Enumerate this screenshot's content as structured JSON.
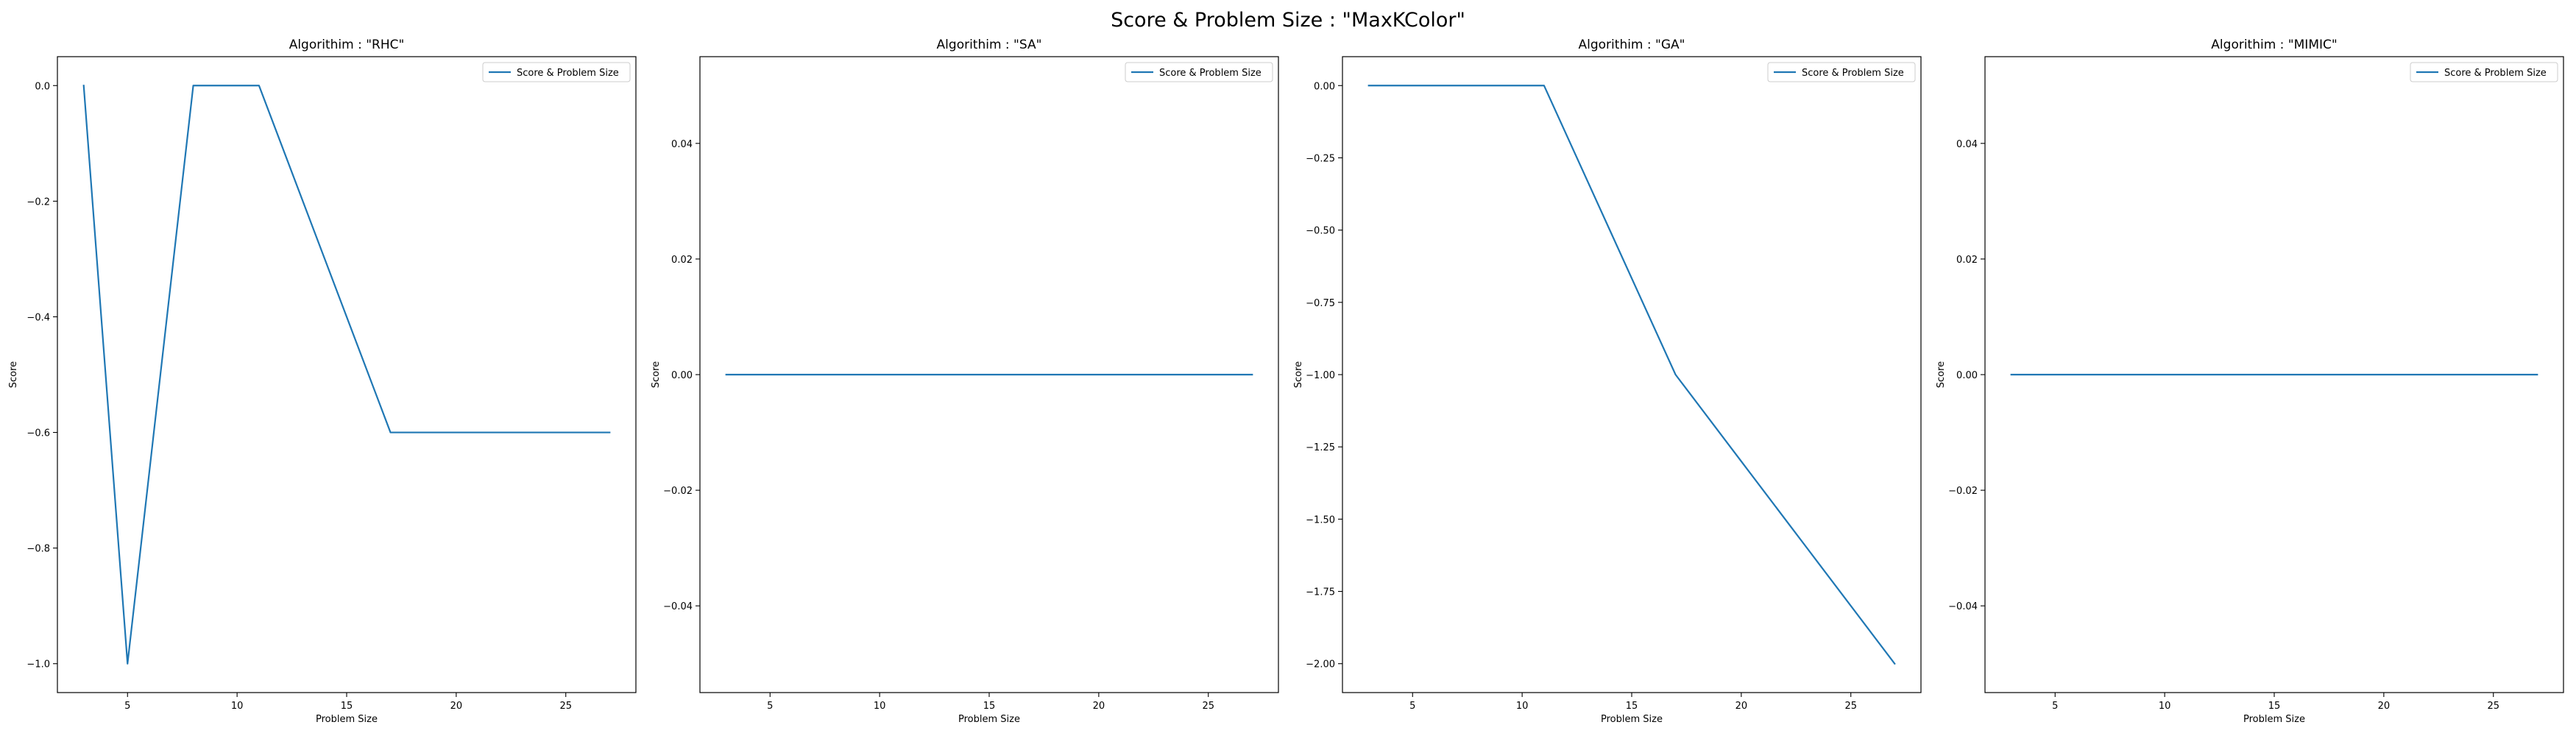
{
  "figure": {
    "title": "Score & Problem Size : \"MaxKColor\""
  },
  "chart_data": [
    {
      "type": "line",
      "title": "Algorithim : \"RHC\"",
      "xlabel": "Problem Size",
      "ylabel": "Score",
      "xlim": [
        1.8,
        28.2
      ],
      "ylim": [
        -1.05,
        0.05
      ],
      "xticks": [
        5,
        10,
        15,
        20,
        25
      ],
      "yticks": [
        0.0,
        -0.2,
        -0.4,
        -0.6,
        -0.8,
        -1.0
      ],
      "ytick_labels": [
        "0.0",
        "−0.2",
        "−0.4",
        "−0.6",
        "−0.8",
        "−1.0"
      ],
      "legend_position": "top-right",
      "series": [
        {
          "name": "Score & Problem Size",
          "color": "#1f77b4",
          "x": [
            3,
            5,
            8,
            11,
            14,
            17,
            20,
            23,
            27
          ],
          "y": [
            0.0,
            -1.0,
            0.0,
            0.0,
            -0.3,
            -0.6,
            -0.6,
            -0.6,
            -0.6
          ]
        }
      ]
    },
    {
      "type": "line",
      "title": "Algorithim : \"SA\"",
      "xlabel": "Problem Size",
      "ylabel": "Score",
      "xlim": [
        1.8,
        28.2
      ],
      "ylim": [
        -0.055,
        0.055
      ],
      "xticks": [
        5,
        10,
        15,
        20,
        25
      ],
      "yticks": [
        0.04,
        0.02,
        0.0,
        -0.02,
        -0.04
      ],
      "ytick_labels": [
        "0.04",
        "0.02",
        "0.00",
        "−0.02",
        "−0.04"
      ],
      "legend_position": "top-right",
      "series": [
        {
          "name": "Score & Problem Size",
          "color": "#1f77b4",
          "x": [
            3,
            5,
            8,
            11,
            14,
            17,
            20,
            23,
            27
          ],
          "y": [
            0,
            0,
            0,
            0,
            0,
            0,
            0,
            0,
            0
          ]
        }
      ]
    },
    {
      "type": "line",
      "title": "Algorithim : \"GA\"",
      "xlabel": "Problem Size",
      "ylabel": "Score",
      "xlim": [
        1.8,
        28.2
      ],
      "ylim": [
        -2.1,
        0.1
      ],
      "xticks": [
        5,
        10,
        15,
        20,
        25
      ],
      "yticks": [
        0.0,
        -0.25,
        -0.5,
        -0.75,
        -1.0,
        -1.25,
        -1.5,
        -1.75,
        -2.0
      ],
      "ytick_labels": [
        "0.00",
        "−0.25",
        "−0.50",
        "−0.75",
        "−1.00",
        "−1.25",
        "−1.50",
        "−1.75",
        "−2.00"
      ],
      "legend_position": "top-right",
      "series": [
        {
          "name": "Score & Problem Size",
          "color": "#1f77b4",
          "x": [
            3,
            5,
            8,
            11,
            14,
            17,
            20,
            23,
            27
          ],
          "y": [
            0.0,
            0.0,
            0.0,
            0.0,
            -0.5,
            -1.0,
            -1.3,
            -1.6,
            -2.0
          ]
        }
      ]
    },
    {
      "type": "line",
      "title": "Algorithim : \"MIMIC\"",
      "xlabel": "Problem Size",
      "ylabel": "Score",
      "xlim": [
        1.8,
        28.2
      ],
      "ylim": [
        -0.055,
        0.055
      ],
      "xticks": [
        5,
        10,
        15,
        20,
        25
      ],
      "yticks": [
        0.04,
        0.02,
        0.0,
        -0.02,
        -0.04
      ],
      "ytick_labels": [
        "0.04",
        "0.02",
        "0.00",
        "−0.02",
        "−0.04"
      ],
      "legend_position": "top-right",
      "series": [
        {
          "name": "Score & Problem Size",
          "color": "#1f77b4",
          "x": [
            3,
            5,
            8,
            11,
            14,
            17,
            20,
            23,
            27
          ],
          "y": [
            0,
            0,
            0,
            0,
            0,
            0,
            0,
            0,
            0
          ]
        }
      ]
    }
  ]
}
